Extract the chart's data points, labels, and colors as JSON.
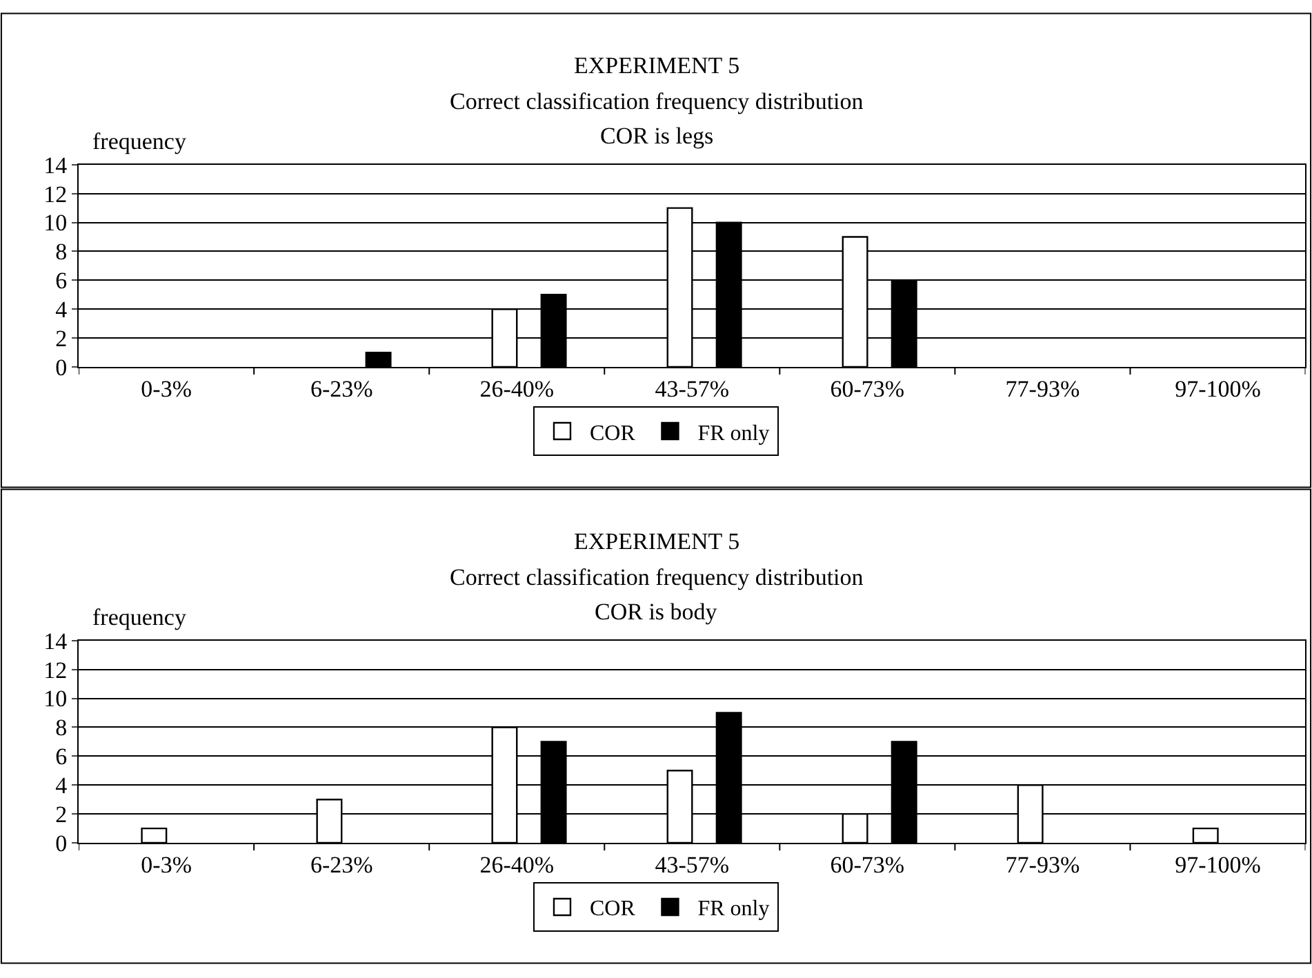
{
  "chart_data": [
    {
      "type": "bar",
      "title": "EXPERIMENT 5",
      "subtitle": "Correct classification frequency distribution\nCOR is legs",
      "ylabel": "frequency",
      "categories": [
        "0-3%",
        "6-23%",
        "26-40%",
        "43-57%",
        "60-73%",
        "77-93%",
        "97-100%"
      ],
      "series": [
        {
          "name": "COR",
          "color": "#ffffff",
          "values": [
            0,
            0,
            4,
            11,
            9,
            0,
            0
          ]
        },
        {
          "name": "FR only",
          "color": "#000000",
          "values": [
            0,
            1,
            5,
            10,
            6,
            0,
            0
          ]
        }
      ],
      "ylim": [
        0,
        14
      ],
      "yticks": [
        0,
        2,
        4,
        6,
        8,
        10,
        12,
        14
      ],
      "grid": "y",
      "legend": "bottom"
    },
    {
      "type": "bar",
      "title": "EXPERIMENT 5",
      "subtitle": "Correct classification frequency distribution\nCOR is body",
      "ylabel": "frequency",
      "categories": [
        "0-3%",
        "6-23%",
        "26-40%",
        "43-57%",
        "60-73%",
        "77-93%",
        "97-100%"
      ],
      "series": [
        {
          "name": "COR",
          "color": "#ffffff",
          "values": [
            1,
            3,
            8,
            5,
            2,
            4,
            1
          ]
        },
        {
          "name": "FR only",
          "color": "#000000",
          "values": [
            0,
            0,
            7,
            9,
            7,
            0,
            0
          ]
        }
      ],
      "ylim": [
        0,
        14
      ],
      "yticks": [
        0,
        2,
        4,
        6,
        8,
        10,
        12,
        14
      ],
      "grid": "y",
      "legend": "bottom"
    }
  ]
}
